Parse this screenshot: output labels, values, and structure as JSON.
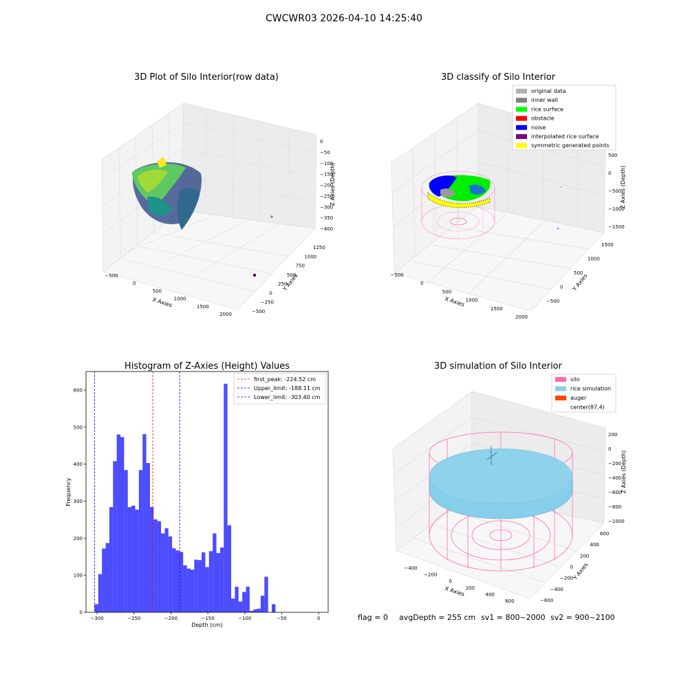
{
  "figure": {
    "title": "CWCWR03 2026-04-10 14:25:40",
    "status": {
      "flag": "flag = 0",
      "avg": "avgDepth = 255 cm",
      "sv1": "sv1 = 800~2000",
      "sv2": "sv2 = 900~2100"
    }
  },
  "panels": {
    "raw": {
      "title": "3D Plot of Silo Interior(row data)",
      "xlabel": "X Axies",
      "ylabel": "Y Axies",
      "zlabel": "Z Axies (Depth)",
      "xticks": [
        "−500",
        "0",
        "500",
        "1000",
        "1500",
        "2000"
      ],
      "yticks": [
        "−500",
        "−250",
        "0",
        "250",
        "500",
        "750",
        "1000",
        "1250"
      ],
      "zticks": [
        "0",
        "−50",
        "−100",
        "−150",
        "−200",
        "−250",
        "−300",
        "−350",
        "−400"
      ],
      "colormap": [
        "#fde725",
        "#5ec962",
        "#21918c",
        "#3b528b",
        "#440154"
      ]
    },
    "classify": {
      "title": "3D classify of Silo Interior",
      "xlabel": "X Axies",
      "ylabel": "Y Axies",
      "zlabel": "Z Axies (Depth)",
      "xticks": [
        "−500",
        "0",
        "500",
        "1000",
        "1500",
        "2000"
      ],
      "yticks": [
        "−500",
        "0",
        "500",
        "1000",
        "1500"
      ],
      "zticks": [
        "500",
        "0",
        "−500",
        "−1000",
        "−1500"
      ],
      "legend": [
        {
          "label": "original data",
          "color": "#b0b0b0"
        },
        {
          "label": "inner wall",
          "color": "#808080"
        },
        {
          "label": "rice surface",
          "color": "#00ff00"
        },
        {
          "label": "obstacle",
          "color": "#ff0000"
        },
        {
          "label": "noise",
          "color": "#0000ff"
        },
        {
          "label": "interpolated rice surface",
          "color": "#800080"
        },
        {
          "label": "symmetric generated points",
          "color": "#ffff00"
        }
      ]
    },
    "simulation": {
      "title": "3D simulation of Silo Interior",
      "xlabel": "X Axies",
      "ylabel": "Y Axies",
      "zlabel": "Z Axies (Depth)",
      "xticks": [
        "−400",
        "−200",
        "0",
        "200",
        "400",
        "600"
      ],
      "yticks": [
        "−600",
        "−400",
        "−200",
        "0",
        "200",
        "400",
        "600"
      ],
      "zticks": [
        "200",
        "0",
        "−200",
        "−400",
        "−600",
        "−800",
        "−1000"
      ],
      "legend": [
        {
          "label": "silo",
          "color": "#ff69b4"
        },
        {
          "label": "rice simulation",
          "color": "#87ceeb"
        },
        {
          "label": "auger",
          "color": "#ff4500"
        },
        {
          "label": "center(87,4)",
          "color": "#ffffff"
        }
      ]
    }
  },
  "chart_data": {
    "type": "bar",
    "title": "Histogram of Z-Axies (Height) Values",
    "xlabel": "Depth (cm)",
    "ylabel": "Frequency",
    "xlim": [
      -315,
      13
    ],
    "ylim": [
      0,
      650
    ],
    "xticks": [
      -300,
      -250,
      -200,
      -150,
      -100,
      -50,
      0
    ],
    "yticks": [
      0,
      100,
      200,
      300,
      400,
      500,
      600
    ],
    "bar_color": "#0000ff",
    "bin_start": -303.4,
    "bin_width": 5.0,
    "values": [
      22,
      103,
      172,
      187,
      284,
      408,
      480,
      473,
      384,
      284,
      288,
      277,
      384,
      481,
      403,
      284,
      251,
      246,
      213,
      227,
      205,
      173,
      167,
      163,
      127,
      118,
      115,
      142,
      141,
      162,
      122,
      165,
      213,
      160,
      175,
      617,
      235,
      37,
      69,
      29,
      55,
      69,
      4,
      8,
      10,
      45,
      96,
      0,
      22
    ],
    "vlines": [
      {
        "label": "first_peak: -224.52 cm",
        "x": -224.52,
        "color": "#ff0000"
      },
      {
        "label": "Upper_limit: -188.11 cm",
        "x": -188.11,
        "color": "#0000cc"
      },
      {
        "label": "Lower_limit: -303.40 cm",
        "x": -303.4,
        "color": "#0000cc"
      }
    ],
    "legend_position": "top-right"
  }
}
